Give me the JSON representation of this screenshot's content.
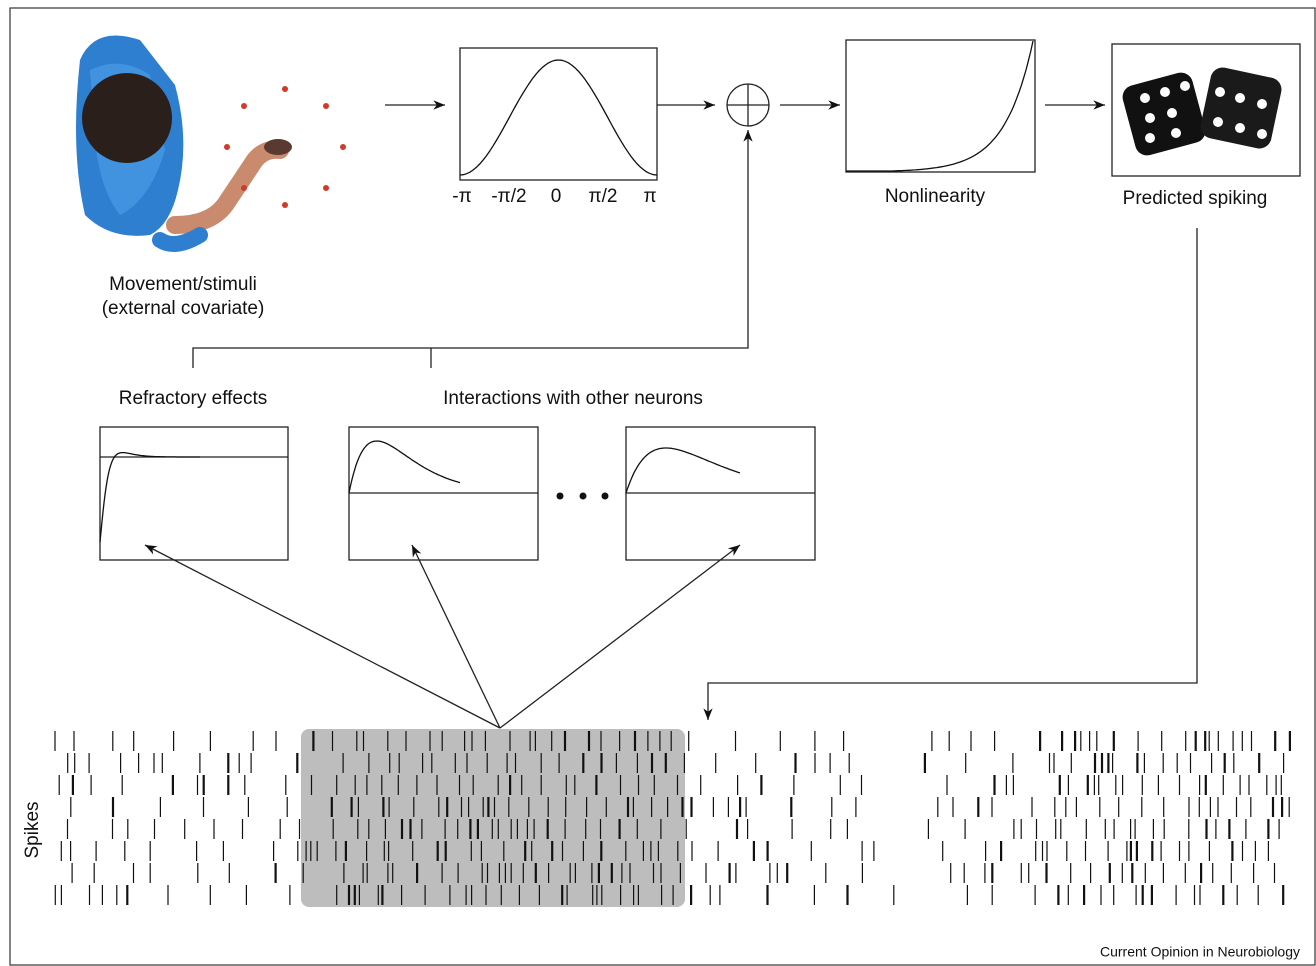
{
  "stimulus": {
    "label_line1": "Movement/stimuli",
    "label_line2": "(external covariate)"
  },
  "tuning": {
    "ticks": [
      "-π",
      "-π/2",
      "0",
      "π/2",
      "π"
    ]
  },
  "nonlinearity": {
    "label": "Nonlinearity"
  },
  "output": {
    "label": "Predicted spiking"
  },
  "history": {
    "refractory_label": "Refractory effects",
    "interactions_label": "Interactions with other neurons"
  },
  "raster": {
    "label": "Spikes"
  },
  "footer": {
    "credit": "Current Opinion in Neurobiology"
  }
}
